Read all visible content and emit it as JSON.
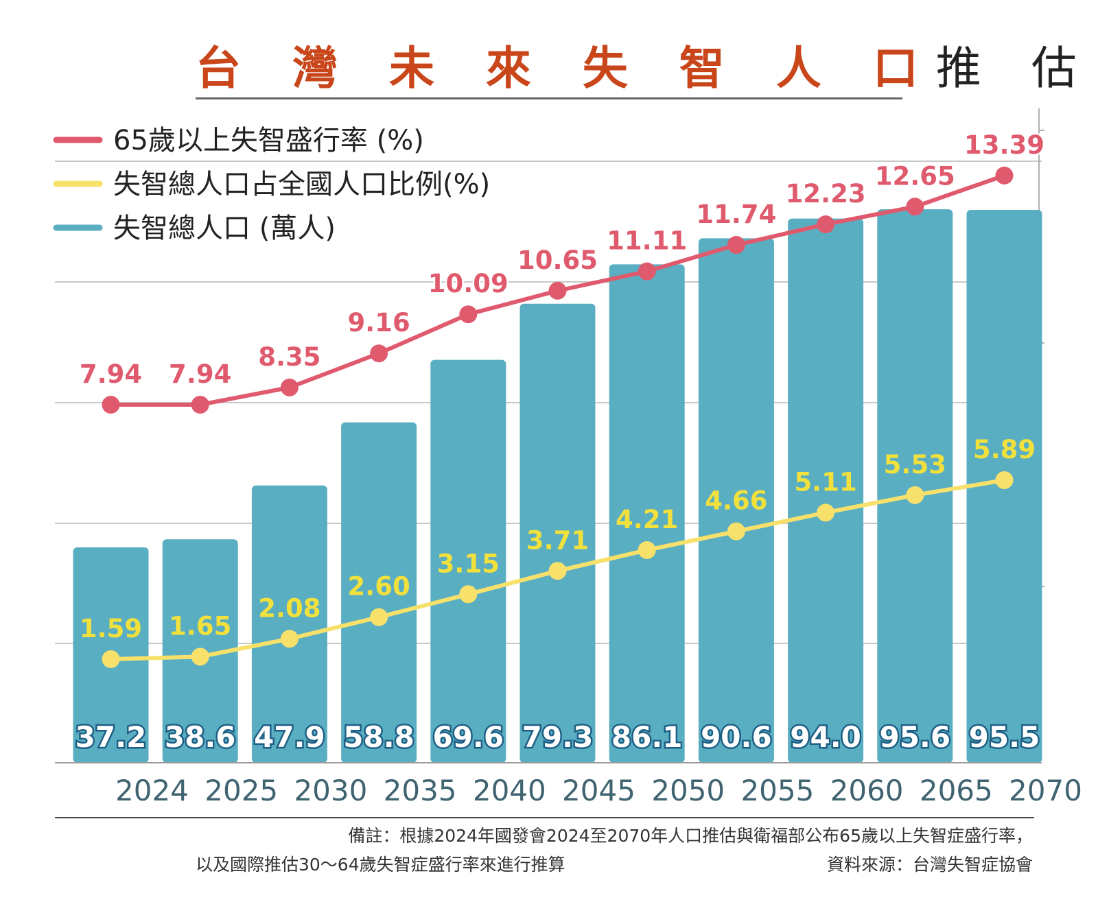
{
  "title_accent": "台 灣 未 來 失 智 人 口",
  "title_rest": "推 估",
  "chart_data": {
    "type": "bar",
    "categories": [
      "2024",
      "2025",
      "2030",
      "2035",
      "2040",
      "2045",
      "2050",
      "2055",
      "2060",
      "2065",
      "2070"
    ],
    "series": [
      {
        "name": "65歲以上失智盛行率 (%)",
        "type": "line",
        "color": "#e05a6e",
        "values": [
          7.94,
          7.94,
          8.35,
          9.16,
          10.09,
          10.65,
          11.11,
          11.74,
          12.23,
          12.65,
          13.39
        ],
        "labels": [
          "7.94",
          "7.94",
          "8.35",
          "9.16",
          "10.09",
          "10.65",
          "11.11",
          "11.74",
          "12.23",
          "12.65",
          "13.39"
        ]
      },
      {
        "name": "失智總人口占全國人口比例(%)",
        "type": "line",
        "color": "#f7e16b",
        "values": [
          1.59,
          1.65,
          2.08,
          2.6,
          3.15,
          3.71,
          4.21,
          4.66,
          5.11,
          5.53,
          5.89
        ],
        "labels": [
          "1.59",
          "1.65",
          "2.08",
          "2.60",
          "3.15",
          "3.71",
          "4.21",
          "4.66",
          "5.11",
          "5.53",
          "5.89"
        ]
      },
      {
        "name": "失智總人口 (萬人)",
        "type": "bar",
        "color": "#5aaec1",
        "values": [
          37.2,
          38.6,
          47.9,
          58.8,
          69.6,
          79.3,
          86.1,
          90.6,
          94.0,
          95.6,
          95.5
        ],
        "labels": [
          "37.2",
          "38.6",
          "47.9",
          "58.8",
          "69.6",
          "79.3",
          "86.1",
          "90.6",
          "94.0",
          "95.6",
          "95.5"
        ]
      }
    ],
    "grid": true,
    "legend_position": "top-left"
  },
  "colors": {
    "title_accent": "#c8461a",
    "bar_label_text": "#ffffff",
    "bar_label_outline": "#1e5f85",
    "prevalence_label": "#e05a6e",
    "share_label": "#f2e13d",
    "year_label": "#3f6370"
  },
  "footnote": {
    "line1": "備註：根據2024年國發會2024至2070年人口推估與衛福部公布65歲以上失智症盛行率，",
    "line2": "以及國際推估30～64歲失智症盛行率來進行推算",
    "source": "資料來源：台灣失智症協會"
  }
}
